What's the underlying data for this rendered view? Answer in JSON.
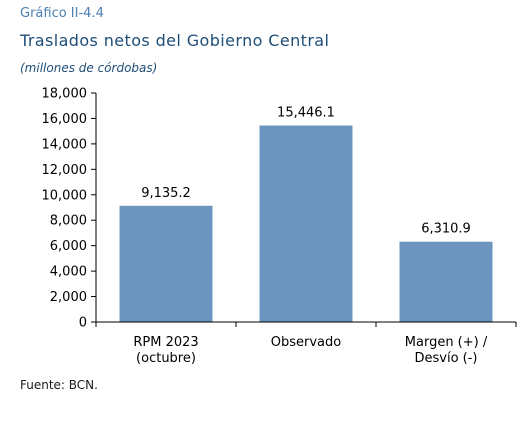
{
  "header": {
    "figure_label": "Gráfico II-4.4",
    "title": "Traslados netos del Gobierno Central",
    "subtitle": "(millones de córdobas)"
  },
  "footer": {
    "source": "Fuente: BCN."
  },
  "colors": {
    "bar": "#6b95bd",
    "axis": "#000000"
  },
  "chart_data": {
    "type": "bar",
    "title": "Traslados netos del Gobierno Central",
    "ylabel": "",
    "xlabel": "",
    "categories": [
      [
        "RPM 2023",
        "(octubre)"
      ],
      [
        "Observado"
      ],
      [
        "Margen (+) /",
        "Desvío (-)"
      ]
    ],
    "values": [
      9135.2,
      15446.1,
      6310.9
    ],
    "value_labels": [
      "9,135.2",
      "15,446.1",
      "6,310.9"
    ],
    "ylim": [
      0,
      18000
    ],
    "yticks": [
      0,
      2000,
      4000,
      6000,
      8000,
      10000,
      12000,
      14000,
      16000,
      18000
    ],
    "ytick_labels": [
      "0",
      "2,000",
      "4,000",
      "6,000",
      "8,000",
      "10,000",
      "12,000",
      "14,000",
      "16,000",
      "18,000"
    ],
    "grid": false,
    "legend": "none"
  }
}
